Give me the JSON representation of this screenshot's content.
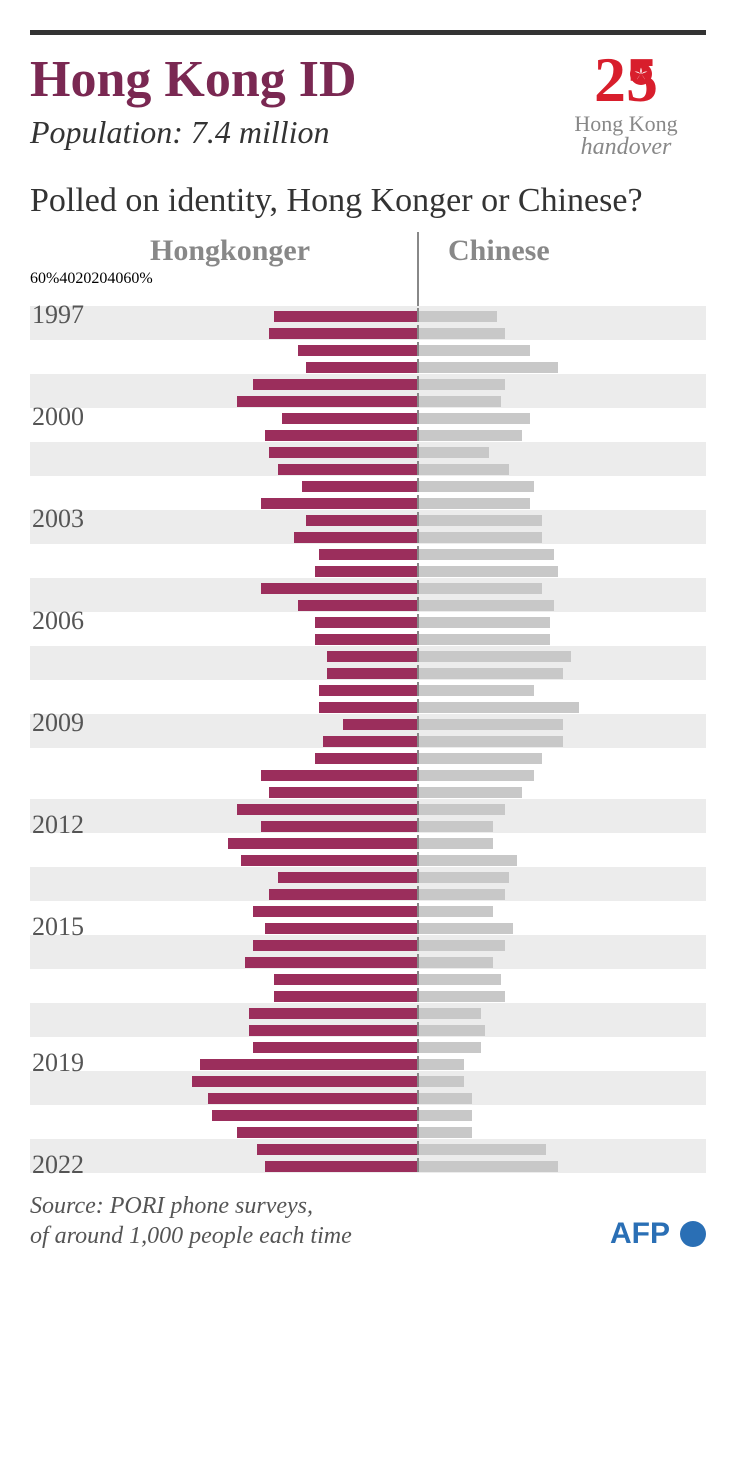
{
  "header": {
    "title": "Hong Kong ID",
    "subtitle": "Population: 7.4 million",
    "logo": {
      "number": "25",
      "line1": "Hong Kong",
      "line2": "handover"
    }
  },
  "question": "Polled on identity, Hong Konger or Chinese?",
  "chart": {
    "type": "diverging-bar",
    "left_label": "Hongkonger",
    "right_label": "Chinese",
    "xmax": 70,
    "tick_values": [
      60,
      40,
      20,
      20,
      40,
      60
    ],
    "tick_labels": [
      "60%",
      "40",
      "20",
      "20",
      "40",
      "60%"
    ],
    "axis_fontsize": 24,
    "label_fontsize": 30,
    "label_color": "#888888",
    "axis_color": "#555555",
    "left_bar_color": "#9b2e5c",
    "right_bar_color": "#c8c8c8",
    "shade_color": "#ececec",
    "center_line_color": "#888888",
    "year_labels": {
      "0": "1997",
      "6": "2000",
      "12": "2003",
      "18": "2006",
      "24": "2009",
      "30": "2012",
      "36": "2015",
      "44": "2019",
      "50": "2022"
    },
    "rows": [
      {
        "hk": 35,
        "cn": 19,
        "shade": true
      },
      {
        "hk": 36,
        "cn": 21,
        "shade": true
      },
      {
        "hk": 29,
        "cn": 27,
        "shade": false
      },
      {
        "hk": 27,
        "cn": 34,
        "shade": false
      },
      {
        "hk": 40,
        "cn": 21,
        "shade": true
      },
      {
        "hk": 44,
        "cn": 20,
        "shade": true
      },
      {
        "hk": 33,
        "cn": 27,
        "shade": false
      },
      {
        "hk": 37,
        "cn": 25,
        "shade": false
      },
      {
        "hk": 36,
        "cn": 17,
        "shade": true
      },
      {
        "hk": 34,
        "cn": 22,
        "shade": true
      },
      {
        "hk": 28,
        "cn": 28,
        "shade": false
      },
      {
        "hk": 38,
        "cn": 27,
        "shade": false
      },
      {
        "hk": 27,
        "cn": 30,
        "shade": true
      },
      {
        "hk": 30,
        "cn": 30,
        "shade": true
      },
      {
        "hk": 24,
        "cn": 33,
        "shade": false
      },
      {
        "hk": 25,
        "cn": 34,
        "shade": false
      },
      {
        "hk": 38,
        "cn": 30,
        "shade": true
      },
      {
        "hk": 29,
        "cn": 33,
        "shade": true
      },
      {
        "hk": 25,
        "cn": 32,
        "shade": false
      },
      {
        "hk": 25,
        "cn": 32,
        "shade": false
      },
      {
        "hk": 22,
        "cn": 37,
        "shade": true
      },
      {
        "hk": 22,
        "cn": 35,
        "shade": true
      },
      {
        "hk": 24,
        "cn": 28,
        "shade": false
      },
      {
        "hk": 24,
        "cn": 39,
        "shade": false
      },
      {
        "hk": 18,
        "cn": 35,
        "shade": true
      },
      {
        "hk": 23,
        "cn": 35,
        "shade": true
      },
      {
        "hk": 25,
        "cn": 30,
        "shade": false
      },
      {
        "hk": 38,
        "cn": 28,
        "shade": false
      },
      {
        "hk": 36,
        "cn": 25,
        "shade": false
      },
      {
        "hk": 44,
        "cn": 21,
        "shade": true
      },
      {
        "hk": 38,
        "cn": 18,
        "shade": true
      },
      {
        "hk": 46,
        "cn": 18,
        "shade": false
      },
      {
        "hk": 43,
        "cn": 24,
        "shade": false
      },
      {
        "hk": 34,
        "cn": 22,
        "shade": true
      },
      {
        "hk": 36,
        "cn": 21,
        "shade": true
      },
      {
        "hk": 40,
        "cn": 18,
        "shade": false
      },
      {
        "hk": 37,
        "cn": 23,
        "shade": false
      },
      {
        "hk": 40,
        "cn": 21,
        "shade": true
      },
      {
        "hk": 42,
        "cn": 18,
        "shade": true
      },
      {
        "hk": 35,
        "cn": 20,
        "shade": false
      },
      {
        "hk": 35,
        "cn": 21,
        "shade": false
      },
      {
        "hk": 41,
        "cn": 15,
        "shade": true
      },
      {
        "hk": 41,
        "cn": 16,
        "shade": true
      },
      {
        "hk": 40,
        "cn": 15,
        "shade": false
      },
      {
        "hk": 53,
        "cn": 11,
        "shade": false
      },
      {
        "hk": 55,
        "cn": 11,
        "shade": true
      },
      {
        "hk": 51,
        "cn": 13,
        "shade": true
      },
      {
        "hk": 50,
        "cn": 13,
        "shade": false
      },
      {
        "hk": 44,
        "cn": 13,
        "shade": false
      },
      {
        "hk": 39,
        "cn": 31,
        "shade": true
      },
      {
        "hk": 37,
        "cn": 34,
        "shade": true
      }
    ]
  },
  "footer": {
    "source": "Source: PORI phone surveys,\nof around 1,000 people each time",
    "afp": "AFP"
  },
  "colors": {
    "title": "#7a2852",
    "logo_red": "#d81e2c",
    "afp_blue": "#2a6fb5",
    "top_rule": "#333333"
  }
}
